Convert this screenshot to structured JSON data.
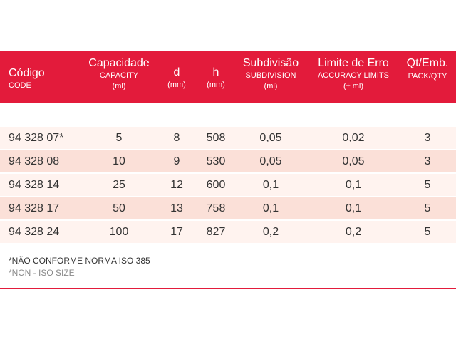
{
  "colors": {
    "header_bg": "#e31b3b",
    "row_light": "#fff3ef",
    "row_dark": "#fbe0d8",
    "text": "#333333",
    "note_muted": "#8a8a8a"
  },
  "header": {
    "code": {
      "pt": "Código",
      "en": "CODE"
    },
    "capacity": {
      "pt": "Capacidade",
      "en": "CAPACITY",
      "unit": "(ml)"
    },
    "d": {
      "pt": "d",
      "unit": "(mm)"
    },
    "h": {
      "pt": "h",
      "unit": "(mm)"
    },
    "subdivision": {
      "pt": "Subdivisão",
      "en": "SUBDIVISION",
      "unit": "(ml)"
    },
    "limit": {
      "pt": "Limite de Erro",
      "en": "ACCURACY LIMITS",
      "unit": "(± ml)"
    },
    "qty": {
      "pt": "Qt/Emb.",
      "en": "PACK/QTY"
    }
  },
  "rows": [
    {
      "code": "94 328 07*",
      "capacity": "5",
      "d": "8",
      "h": "508",
      "subdivision": "0,05",
      "limit": "0,02",
      "qty": "3"
    },
    {
      "code": "94 328 08",
      "capacity": "10",
      "d": "9",
      "h": "530",
      "subdivision": "0,05",
      "limit": "0,05",
      "qty": "3"
    },
    {
      "code": "94 328 14",
      "capacity": "25",
      "d": "12",
      "h": "600",
      "subdivision": "0,1",
      "limit": "0,1",
      "qty": "5"
    },
    {
      "code": "94 328 17",
      "capacity": "50",
      "d": "13",
      "h": "758",
      "subdivision": "0,1",
      "limit": "0,1",
      "qty": "5"
    },
    {
      "code": "94 328 24",
      "capacity": "100",
      "d": "17",
      "h": "827",
      "subdivision": "0,2",
      "limit": "0,2",
      "qty": "5"
    }
  ],
  "notes": {
    "pt": "*NÃO CONFORME NORMA ISO 385",
    "en": "*NON - ISO SIZE"
  }
}
